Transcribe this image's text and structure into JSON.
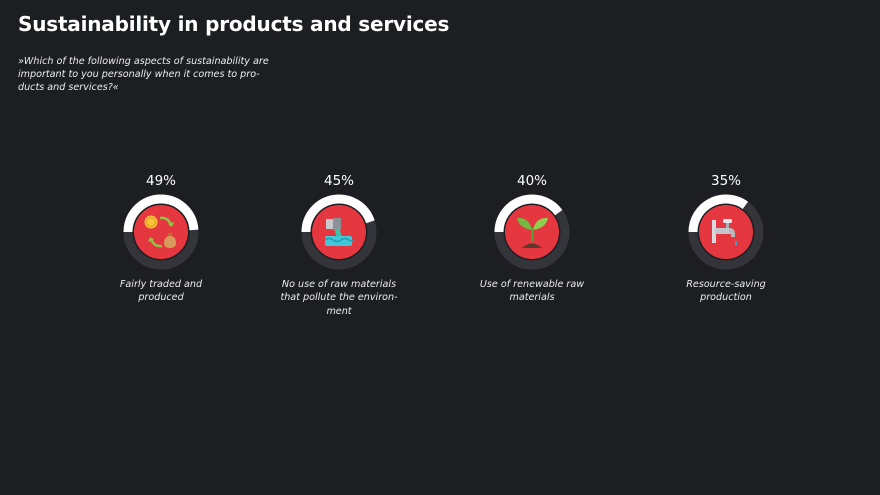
{
  "header": {
    "title": "Sustainability in products and services",
    "question": "»Which of the following aspects of sustainability are important to you personally when it comes to pro-ducts and services?«"
  },
  "colors": {
    "background": "#1d1e22",
    "ring_fill": "#ffffff",
    "ring_track": "#34353a",
    "icon_circle": "#e5373f"
  },
  "chart_data": {
    "type": "radial-progress",
    "title": "Sustainability in products and services",
    "categories": [
      "Fairly traded and produced",
      "No use of raw materials that pollute the environ-ment",
      "Use of renewable raw materials",
      "Resource-saving production"
    ],
    "values": [
      49,
      45,
      40,
      35
    ],
    "labels": [
      "49%",
      "45%",
      "40%",
      "35%"
    ],
    "unit": "%",
    "max": 100,
    "icons": [
      "money-exchange-icon",
      "polluting-pipe-icon",
      "seedling-icon",
      "water-tap-icon"
    ]
  }
}
